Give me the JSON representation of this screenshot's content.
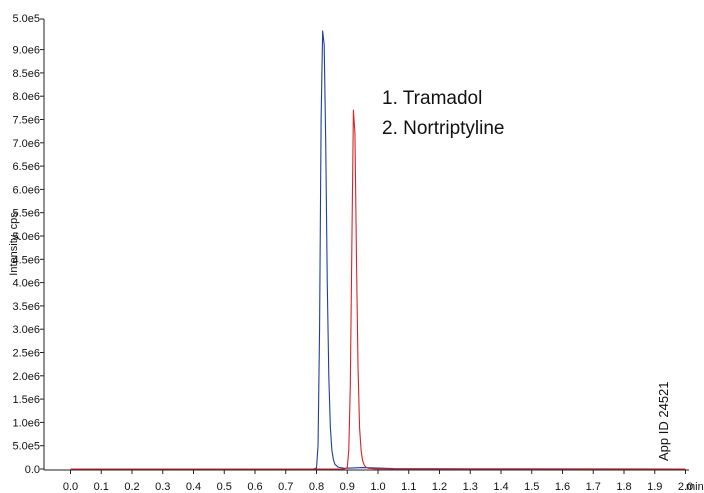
{
  "chart_data": {
    "type": "line",
    "ylabel": "Intensity, cps",
    "x_unit": "min",
    "xlim": [
      0.0,
      2.0
    ],
    "ylim": [
      0,
      9500000
    ],
    "x_ticks": [
      "0.0",
      "0.1",
      "0.2",
      "0.3",
      "0.4",
      "0.5",
      "0.6",
      "0.7",
      "0.8",
      "0.9",
      "1.0",
      "1.1",
      "1.2",
      "1.3",
      "1.4",
      "1.5",
      "1.6",
      "1.7",
      "1.8",
      "1.9",
      "2.0"
    ],
    "y_ticks": [
      "0.0",
      "5.0e5",
      "1.0e6",
      "1.5e6",
      "2.0e6",
      "2.5e6",
      "3.0e6",
      "3.5e6",
      "4.0e6",
      "4.5e6",
      "5.0e6",
      "5.5e6",
      "6.0e6",
      "6.5e6",
      "7.0e6",
      "7.5e6",
      "8.0e6",
      "8.5e6",
      "9.0e6"
    ],
    "y_top_label": "5.0e5",
    "annotations": [
      "1. Tramadol",
      "2. Nortriptyline"
    ],
    "series": [
      {
        "color": "#1f3f99",
        "x": [
          0.0,
          0.79,
          0.8,
          0.805,
          0.81,
          0.815,
          0.82,
          0.825,
          0.83,
          0.835,
          0.84,
          0.845,
          0.85,
          0.855,
          0.86,
          0.87,
          0.89,
          0.95,
          1.05,
          1.3,
          2.0
        ],
        "values": [
          0,
          0,
          20000,
          500000,
          3000000,
          7500000,
          9400000,
          9100000,
          7000000,
          4000000,
          2000000,
          900000,
          400000,
          200000,
          100000,
          40000,
          15000,
          30000,
          10000,
          5000,
          0
        ]
      },
      {
        "color": "#d8232a",
        "x": [
          0.0,
          0.89,
          0.9,
          0.905,
          0.91,
          0.915,
          0.92,
          0.925,
          0.93,
          0.935,
          0.94,
          0.945,
          0.95,
          0.955,
          0.96,
          0.97,
          0.99,
          1.05,
          2.0
        ],
        "values": [
          0,
          0,
          30000,
          400000,
          1800000,
          4800000,
          7700000,
          7200000,
          4500000,
          2200000,
          900000,
          400000,
          180000,
          90000,
          40000,
          15000,
          5000,
          0,
          0
        ]
      }
    ],
    "side_text": "App ID 24521"
  }
}
